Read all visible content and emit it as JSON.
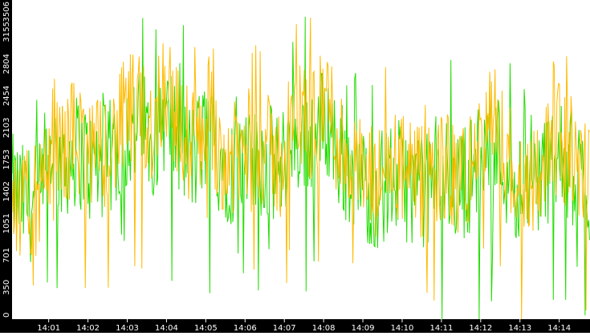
{
  "chart_data": {
    "type": "line",
    "title": "",
    "xlabel": "",
    "ylabel": "",
    "ylim": [
      0,
      3506
    ],
    "yticks": [
      0,
      350,
      701,
      1051,
      1402,
      1753,
      2103,
      2454,
      2804,
      3155,
      3506
    ],
    "ytick_labels": [
      "0",
      "350",
      "701",
      "1051",
      "1402",
      "1753",
      "2103",
      "2454",
      "2804",
      "3155",
      "3506"
    ],
    "xlim": [
      "14:00:04",
      "14:14:47"
    ],
    "xticks": [
      "14:01:00",
      "14:02:00",
      "14:03:00",
      "14:04:00",
      "14:05:00",
      "14:06:00",
      "14:07:00",
      "14:08:00",
      "14:09:00",
      "14:10:00",
      "14:11:00",
      "14:12:00",
      "14:13:00",
      "14:14:00"
    ],
    "xtick_labels": [
      "14:01",
      "14:02",
      "14:03",
      "14:04",
      "14:05",
      "14:06",
      "14:07",
      "14:08",
      "14:09",
      "14:10",
      "14:11",
      "14:12",
      "14:13",
      "14:14"
    ],
    "colors": {
      "background": "#ffffff",
      "axis": "#000000",
      "ticks_text": "#ffffff",
      "series_a": "#22dd00",
      "series_b": "#ffbb00"
    },
    "series": [
      {
        "color": "#22dd00",
        "x": [
          "14:00:04",
          "14:00:20",
          "14:00:40",
          "14:00:55",
          "14:01:04",
          "14:01:20",
          "14:01:40",
          "14:01:55",
          "14:02:04",
          "14:02:20",
          "14:02:40",
          "14:02:55",
          "14:03:04",
          "14:03:20",
          "14:03:40",
          "14:03:55",
          "14:04:04",
          "14:04:20",
          "14:04:40",
          "14:04:55",
          "14:05:04",
          "14:05:20",
          "14:05:40",
          "14:05:55",
          "14:06:04",
          "14:06:20",
          "14:06:40",
          "14:06:55",
          "14:07:04",
          "14:07:20",
          "14:07:40",
          "14:07:55",
          "14:08:04",
          "14:08:20",
          "14:08:40",
          "14:08:55",
          "14:09:04",
          "14:09:20",
          "14:09:40",
          "14:09:55",
          "14:10:04",
          "14:10:20",
          "14:10:40",
          "14:10:55",
          "14:11:04",
          "14:11:20",
          "14:11:40",
          "14:11:55",
          "14:12:04",
          "14:12:20",
          "14:12:40",
          "14:12:55",
          "14:13:04",
          "14:13:20",
          "14:13:40",
          "14:13:55",
          "14:14:04",
          "14:14:20",
          "14:14:40",
          "14:14:47"
        ],
        "values": [
          1400,
          1300,
          1250,
          1350,
          1900,
          1700,
          1850,
          1800,
          1650,
          1700,
          1800,
          2000,
          2050,
          2100,
          2000,
          2250,
          2200,
          1900,
          1750,
          1950,
          2100,
          1800,
          1650,
          1700,
          1600,
          1750,
          1700,
          1600,
          1900,
          2000,
          1950,
          2100,
          2200,
          1850,
          1650,
          1500,
          1450,
          1400,
          1500,
          1550,
          1500,
          1450,
          1400,
          1550,
          1600,
          1450,
          1550,
          1700,
          1800,
          1950,
          1650,
          1500,
          1400,
          1500,
          1650,
          1800,
          1700,
          1650,
          1500,
          1350
        ]
      },
      {
        "color": "#ffbb00",
        "x": [
          "14:00:04",
          "14:00:20",
          "14:00:40",
          "14:00:55",
          "14:01:04",
          "14:01:20",
          "14:01:40",
          "14:01:55",
          "14:02:04",
          "14:02:20",
          "14:02:40",
          "14:02:55",
          "14:03:04",
          "14:03:20",
          "14:03:40",
          "14:03:55",
          "14:04:04",
          "14:04:20",
          "14:04:40",
          "14:04:55",
          "14:05:04",
          "14:05:20",
          "14:05:40",
          "14:05:55",
          "14:06:04",
          "14:06:20",
          "14:06:40",
          "14:06:55",
          "14:07:04",
          "14:07:20",
          "14:07:40",
          "14:07:55",
          "14:08:04",
          "14:08:20",
          "14:08:40",
          "14:08:55",
          "14:09:04",
          "14:09:20",
          "14:09:40",
          "14:09:55",
          "14:10:04",
          "14:10:20",
          "14:10:40",
          "14:10:55",
          "14:11:04",
          "14:11:20",
          "14:11:40",
          "14:11:55",
          "14:12:04",
          "14:12:20",
          "14:12:40",
          "14:12:55",
          "14:13:04",
          "14:13:20",
          "14:13:40",
          "14:13:55",
          "14:14:04",
          "14:14:20",
          "14:14:40",
          "14:14:47"
        ],
        "values": [
          1500,
          1150,
          1350,
          1200,
          2100,
          1800,
          2050,
          1900,
          1700,
          1850,
          1950,
          2200,
          2300,
          2250,
          2100,
          2600,
          2550,
          2050,
          1900,
          2100,
          2300,
          1900,
          1700,
          1850,
          1750,
          1900,
          1800,
          1700,
          2050,
          2250,
          2150,
          2250,
          2500,
          2000,
          1750,
          1600,
          1500,
          1450,
          1650,
          1700,
          1600,
          1500,
          1450,
          1650,
          1700,
          1500,
          1600,
          1850,
          1950,
          2200,
          1800,
          1600,
          1450,
          1600,
          1800,
          2000,
          1900,
          1800,
          1600,
          1450
        ]
      }
    ]
  }
}
